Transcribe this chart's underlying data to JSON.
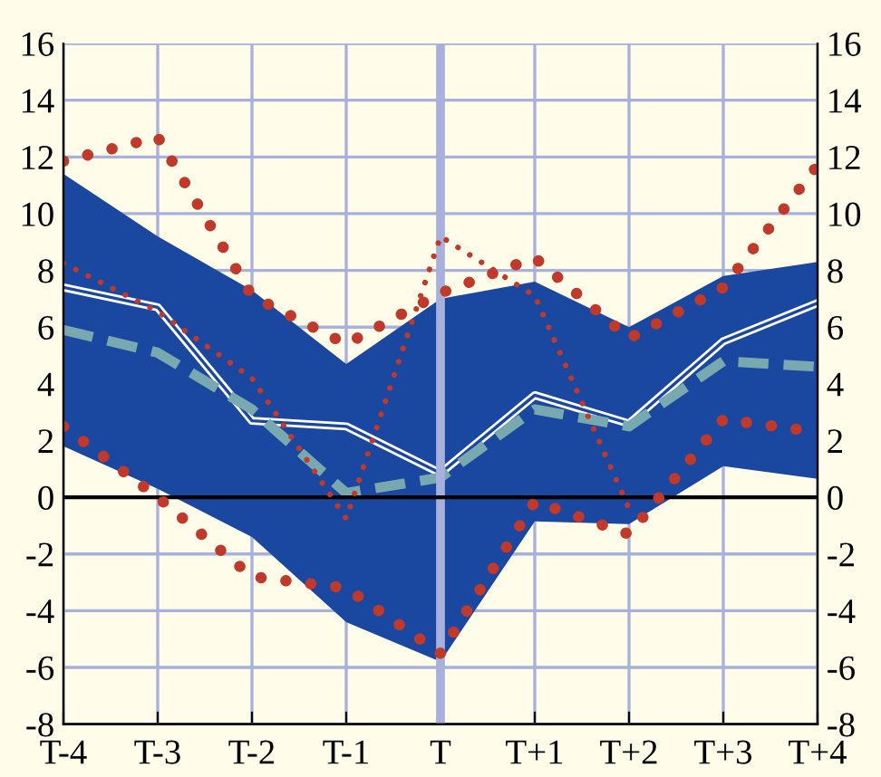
{
  "chart_data": {
    "type": "line",
    "categories": [
      "T-4",
      "T-3",
      "T-2",
      "T-1",
      "T",
      "T+1",
      "T+2",
      "T+3",
      "T+4"
    ],
    "series": [
      {
        "type": "line",
        "color": "#1a47a0",
        "line_style": "solid",
        "values": [
          7.4,
          6.7,
          2.7,
          2.5,
          0.85,
          3.6,
          2.6,
          5.5,
          6.85
        ],
        "lower": [
          1.8,
          0.3,
          -1.4,
          -4.4,
          -5.8,
          -0.85,
          -0.95,
          1.1,
          0.65
        ],
        "upper": [
          11.4,
          9.2,
          7.3,
          4.7,
          7.0,
          7.6,
          6.0,
          7.8,
          8.3
        ]
      },
      {
        "color": "#78a8b0",
        "line_style": "dashed",
        "values": [
          5.9,
          5.1,
          3.1,
          0.15,
          0.7,
          3.1,
          2.5,
          4.8,
          4.6
        ]
      },
      {
        "color": "#c0392b",
        "line_style": "dotted",
        "values": [
          11.85,
          12.7,
          7.1,
          5.4,
          7.2,
          8.45,
          5.6,
          7.4,
          11.7
        ]
      },
      {
        "color": "#c0392b",
        "line_style": "dotted",
        "values": [
          2.5,
          0.0,
          -2.8,
          -3.2,
          -5.5,
          -0.15,
          -1.3,
          2.75,
          2.3
        ]
      },
      {
        "color": "#c0392b",
        "line_style": "dotted",
        "values": [
          8.25,
          6.55,
          4.2,
          -0.75,
          9.2,
          7.1,
          -0.4,
          null,
          null
        ]
      }
    ],
    "ylim": [
      -8,
      16
    ],
    "yticks": [
      -8,
      -6,
      -4,
      -2,
      0,
      2,
      4,
      6,
      8,
      10,
      12,
      14,
      16
    ],
    "y2lim": [
      -8,
      16
    ],
    "y2ticks": [
      -8,
      -6,
      -4,
      -2,
      0,
      2,
      4,
      6,
      8,
      10,
      12,
      14,
      16
    ],
    "ref_lines": [
      {
        "axis": "x",
        "value": "T",
        "color": "#a8b0dc"
      },
      {
        "axis": "y",
        "value": 0,
        "color": "#000000"
      }
    ],
    "grid": true
  }
}
